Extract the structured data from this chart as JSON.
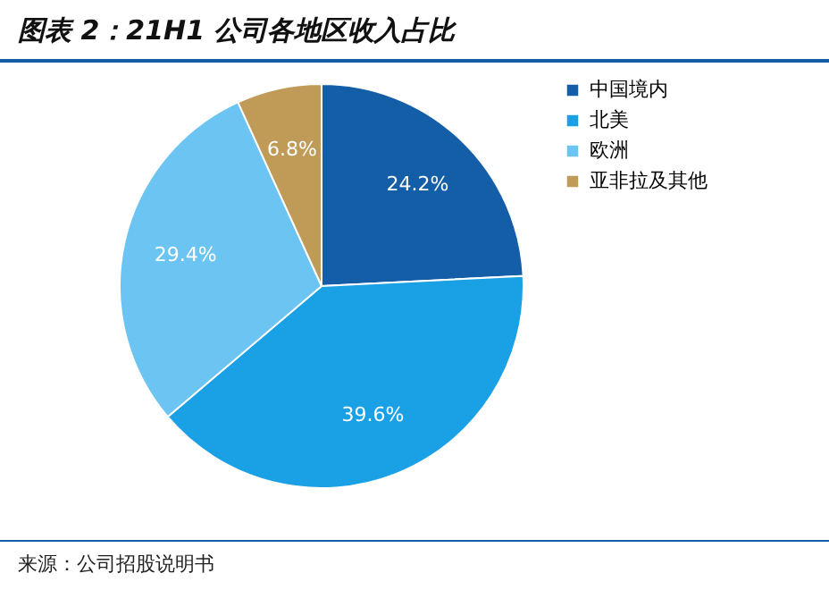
{
  "chart_data": {
    "type": "pie",
    "title": "图表 2：21H1 公司各地区收入占比",
    "categories": [
      "中国境内",
      "北美",
      "欧洲",
      "亚非拉及其他"
    ],
    "values": [
      24.2,
      39.6,
      29.4,
      6.8
    ],
    "value_labels": [
      "24.2%",
      "39.6%",
      "29.4%",
      "6.8%"
    ],
    "colors": [
      "#135ea6",
      "#1aa0e4",
      "#6cc4f2",
      "#c09a57"
    ],
    "legend": "right",
    "annotations": [
      "来源：公司招股说明书"
    ]
  }
}
